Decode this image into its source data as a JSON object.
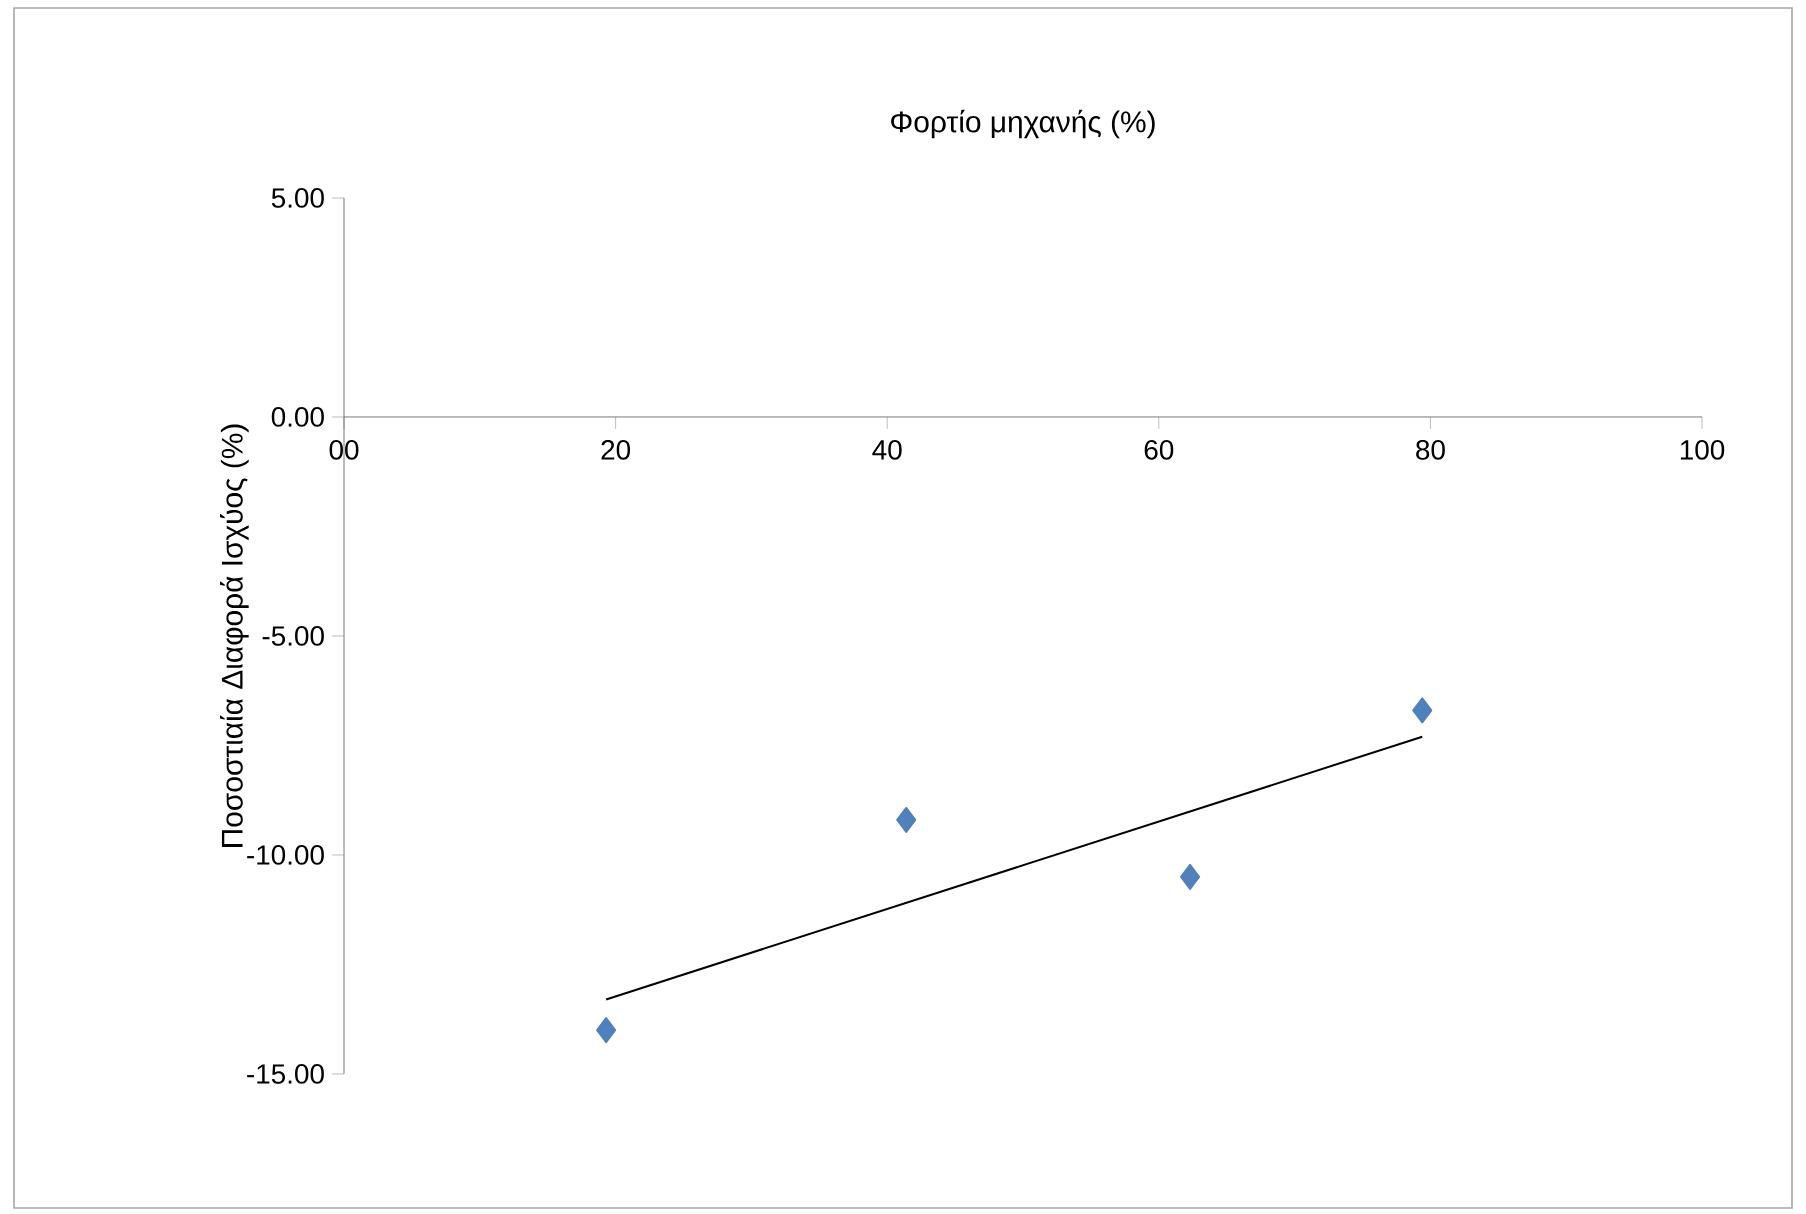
{
  "chart_data": {
    "type": "scatter",
    "xlabel": "Φορτίο μηχανής (%)",
    "ylabel": "Ποσοστιαία Διαφορά  Ισχύος (%)",
    "series": [
      {
        "color": "#4f81bd",
        "marker": "diamond",
        "x": [
          19.3,
          41.4,
          62.3,
          79.4
        ],
        "values": [
          -14.0,
          -9.2,
          -10.5,
          -6.7
        ]
      },
      {
        "type": "line",
        "color": "#000000",
        "marker": "none",
        "x": [
          19.3,
          79.4
        ],
        "values": [
          -13.3,
          -7.3
        ]
      }
    ],
    "xlim": [
      0,
      100
    ],
    "ylim": [
      -15,
      5
    ],
    "xticks": [
      {
        "value": 0,
        "label": "00"
      },
      20,
      40,
      60,
      80,
      100
    ],
    "yticks": [
      {
        "value": 5,
        "label": "5.00"
      },
      {
        "value": 0,
        "label": "0.00"
      },
      {
        "value": -5,
        "label": "-5.00"
      },
      {
        "value": -10,
        "label": "-10.00"
      },
      {
        "value": -15,
        "label": "-15.00"
      }
    ],
    "grid": false
  }
}
